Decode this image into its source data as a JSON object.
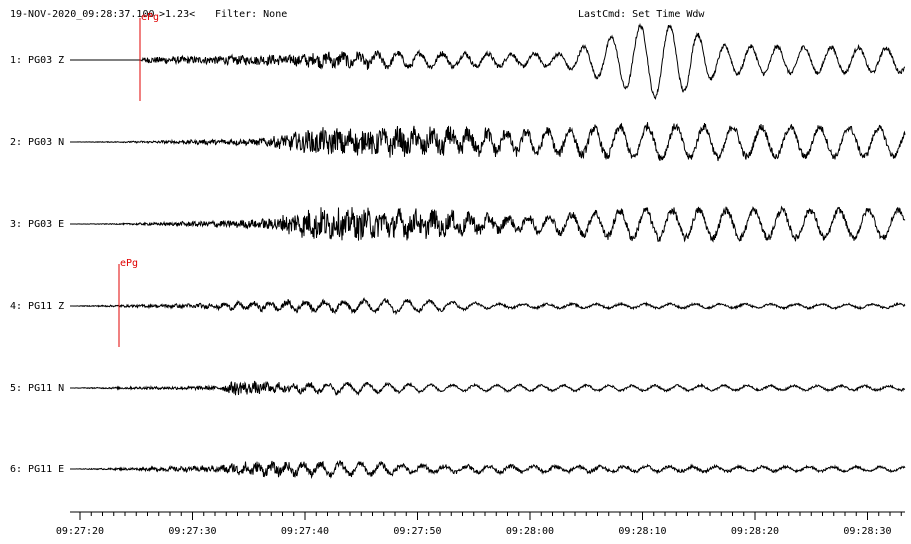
{
  "header": {
    "timestamp": "19-NOV-2020_09:28:37.100",
    "scale": ">1.23<",
    "filter": "Filter: None",
    "last_cmd": "LastCmd: Set Time Wdw"
  },
  "traces": [
    {
      "label": "1: PG03 Z",
      "pick": "ePg"
    },
    {
      "label": "2: PG03 N"
    },
    {
      "label": "3: PG03 E"
    },
    {
      "label": "4: PG11 Z",
      "pick": "ePg"
    },
    {
      "label": "5: PG11 N"
    },
    {
      "label": "6: PG11 E"
    }
  ],
  "time_axis": {
    "ticks": [
      "09:27:20",
      "09:27:30",
      "09:27:40",
      "09:27:50",
      "09:28:00",
      "09:28:10",
      "09:28:20",
      "09:28:30"
    ]
  }
}
